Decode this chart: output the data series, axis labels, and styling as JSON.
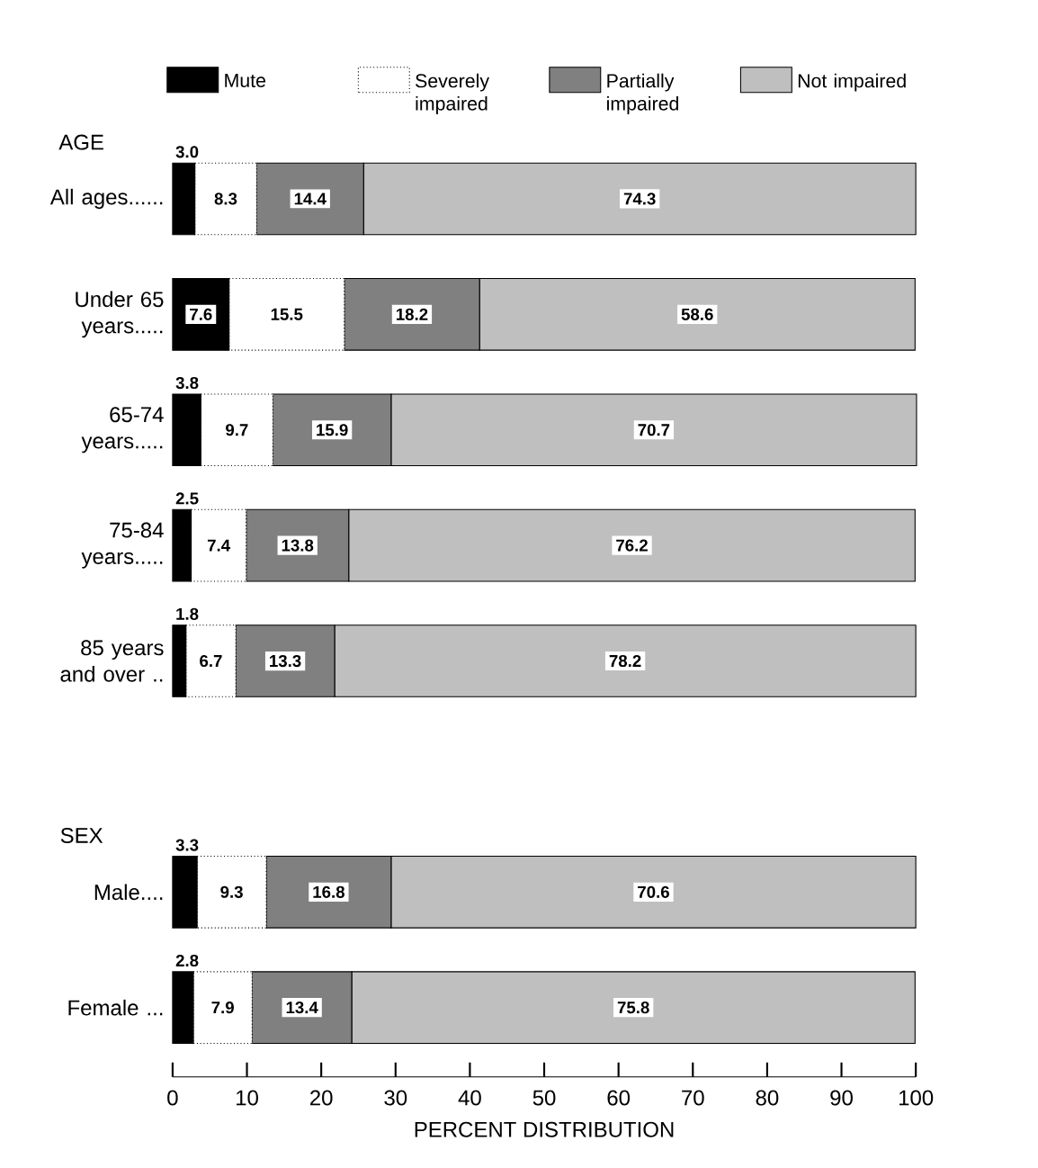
{
  "chart_data": {
    "type": "bar",
    "orientation": "horizontal",
    "stacked": true,
    "data_labels": true,
    "legend": "top",
    "xlabel": "PERCENT DISTRIBUTION",
    "categories": [
      "All ages......",
      "Under 65 years.....",
      "65-74 years.....",
      "75-84 years.....",
      "85 years and over ..",
      null,
      "Male....",
      "Female ..."
    ],
    "series": [
      {
        "name": "Mute",
        "color": "#000000",
        "values": [
          3.0,
          7.6,
          3.8,
          2.5,
          1.8,
          null,
          3.3,
          2.8
        ],
        "value_labels": [
          "3.0",
          "7.6",
          "3.8",
          "2.5",
          "1.8",
          null,
          "3.3",
          "2.8"
        ]
      },
      {
        "name": "Severely impaired",
        "color": "#ffffff",
        "values": [
          8.3,
          15.5,
          9.7,
          7.4,
          6.7,
          null,
          9.3,
          7.9
        ]
      },
      {
        "name": "Partially impaired",
        "color": "#808080",
        "values": [
          14.4,
          18.2,
          15.9,
          13.8,
          13.3,
          null,
          16.8,
          13.4
        ]
      },
      {
        "name": "Not impaired",
        "color": "#bfbfbf",
        "values": [
          74.3,
          58.6,
          70.7,
          76.2,
          78.2,
          null,
          70.6,
          75.8
        ]
      }
    ],
    "annotations": [
      "AGE",
      "SEX"
    ],
    "xlim": [
      0,
      100
    ],
    "xticks": [
      0,
      10,
      20,
      30,
      40,
      50,
      60,
      70,
      80,
      90,
      100
    ]
  }
}
